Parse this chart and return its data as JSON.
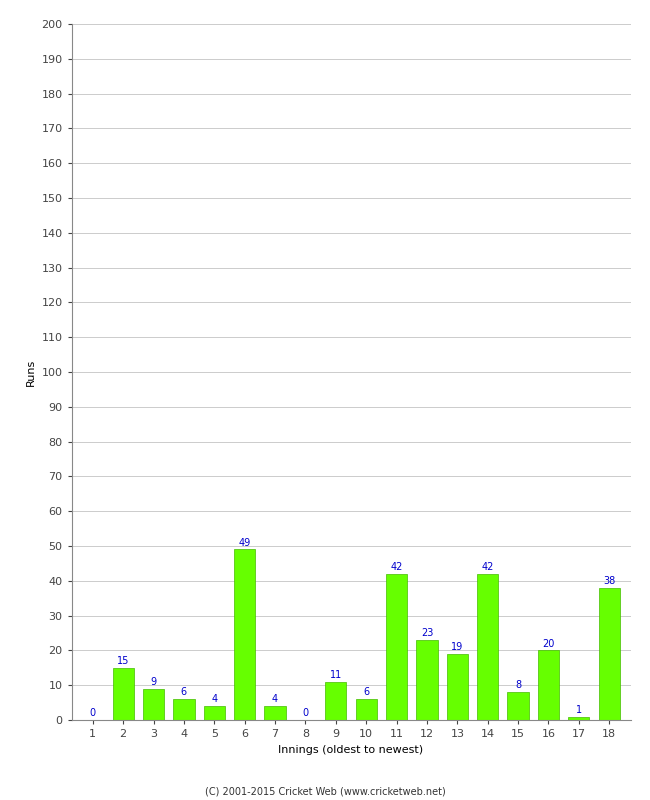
{
  "innings": [
    1,
    2,
    3,
    4,
    5,
    6,
    7,
    8,
    9,
    10,
    11,
    12,
    13,
    14,
    15,
    16,
    17,
    18
  ],
  "runs": [
    0,
    15,
    9,
    6,
    4,
    49,
    4,
    0,
    11,
    6,
    42,
    23,
    19,
    42,
    8,
    20,
    1,
    38
  ],
  "bar_color": "#66ff00",
  "bar_edge_color": "#44bb00",
  "xlabel": "Innings (oldest to newest)",
  "ylabel": "Runs",
  "ylim": [
    0,
    200
  ],
  "yticks": [
    0,
    10,
    20,
    30,
    40,
    50,
    60,
    70,
    80,
    90,
    100,
    110,
    120,
    130,
    140,
    150,
    160,
    170,
    180,
    190,
    200
  ],
  "footnote": "(C) 2001-2015 Cricket Web (www.cricketweb.net)",
  "background_color": "#ffffff",
  "grid_color": "#cccccc",
  "label_color": "#0000cc",
  "label_fontsize": 7,
  "axis_fontsize": 8,
  "ylabel_fontsize": 8,
  "footnote_fontsize": 7
}
